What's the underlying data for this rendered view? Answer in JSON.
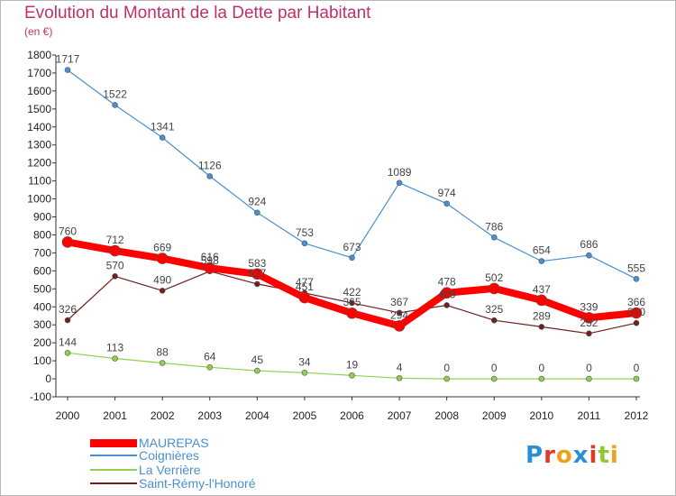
{
  "chart_data": {
    "type": "line",
    "title": "Evolution du Montant de la Dette par Habitant",
    "subtitle": "(en €)",
    "xlabel": "",
    "ylabel": "",
    "ylim": [
      -100,
      1800
    ],
    "y_ticks": [
      "1800",
      "1700",
      "1600",
      "1500",
      "1400",
      "1300",
      "1200",
      "1100",
      "1000",
      "900",
      "800",
      "700",
      "600",
      "500",
      "400",
      "300",
      "200",
      "100",
      "0",
      "-100"
    ],
    "x": [
      "2000",
      "2001",
      "2002",
      "2003",
      "2004",
      "2005",
      "2006",
      "2007",
      "2008",
      "2009",
      "2010",
      "2011",
      "2012"
    ],
    "grid": false,
    "legend_position": "bottom-left",
    "series": [
      {
        "name": "MAUREPAS",
        "color": "#ff0000",
        "values": [
          760,
          712,
          669,
          616,
          583,
          451,
          365,
          294,
          478,
          502,
          437,
          339,
          366
        ],
        "labels": [
          "760",
          "712",
          "669",
          "616",
          "583",
          "451",
          "365",
          "294",
          "478",
          "502",
          "437",
          "339",
          "366"
        ]
      },
      {
        "name": "Coignières",
        "color": "#4a90d0",
        "values": [
          1717,
          1522,
          1341,
          1126,
          924,
          753,
          673,
          1089,
          974,
          786,
          654,
          686,
          555
        ],
        "labels": [
          "1717",
          "1522",
          "1341",
          "1126",
          "924",
          "753",
          "673",
          "1089",
          "974",
          "786",
          "654",
          "686",
          "555"
        ]
      },
      {
        "name": "La Verrière",
        "color": "#90d050",
        "values": [
          144,
          113,
          88,
          64,
          45,
          34,
          19,
          4,
          0,
          0,
          0,
          0,
          0
        ],
        "labels": [
          "144",
          "113",
          "88",
          "64",
          "45",
          "34",
          "19",
          "4",
          "0",
          "0",
          "0",
          "0",
          "0"
        ]
      },
      {
        "name": "Saint-Rémy-l'Honoré",
        "color": "#702020",
        "values": [
          326,
          570,
          490,
          598,
          527,
          477,
          422,
          367,
          409,
          325,
          289,
          252,
          310
        ],
        "labels": [
          "326",
          "570",
          "490",
          "598",
          "527",
          "477",
          "422",
          "367",
          "409",
          "325",
          "289",
          "252",
          "310"
        ]
      }
    ]
  },
  "brand": {
    "letters": [
      "P",
      "r",
      "o",
      "x",
      "i",
      "t",
      "i"
    ],
    "colors": [
      "#2a8fd8",
      "#e03a2a",
      "#f0a020",
      "#2a8fd8",
      "#e03a2a",
      "#90c830",
      "#f0a020"
    ]
  }
}
